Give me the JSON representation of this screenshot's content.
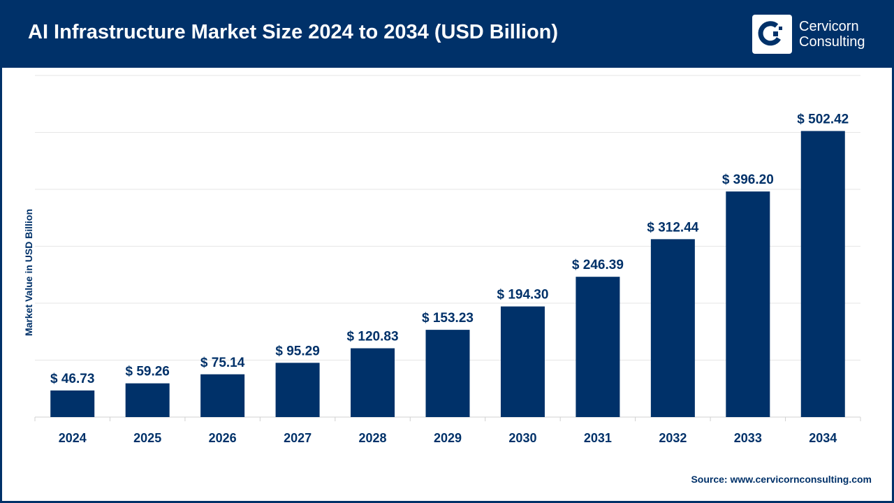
{
  "header": {
    "title": "AI Infrastructure Market Size 2024 to 2034 (USD Billion)",
    "brand": "Cervicorn Consulting",
    "brand_line1": "Cervicorn",
    "brand_line2": "Consulting"
  },
  "colors": {
    "header_bg": "#003169",
    "bar": "#003169",
    "grid": "#e6e6e6"
  },
  "chart_data": {
    "type": "bar",
    "title": "AI Infrastructure Market Size 2024 to 2034 (USD Billion)",
    "xlabel": "",
    "ylabel": "Market Value in USD Billion",
    "categories": [
      "2024",
      "2025",
      "2026",
      "2027",
      "2028",
      "2029",
      "2030",
      "2031",
      "2032",
      "2033",
      "2034"
    ],
    "values": [
      46.73,
      59.26,
      75.14,
      95.29,
      120.83,
      153.23,
      194.3,
      246.39,
      312.44,
      396.2,
      502.42
    ],
    "data_labels": [
      "$ 46.73",
      "$ 59.26",
      "$ 75.14",
      "$ 95.29",
      "$ 120.83",
      "$ 153.23",
      "$ 194.30",
      "$ 246.39",
      "$ 312.44",
      "$ 396.20",
      "$ 502.42"
    ],
    "ylim": [
      0,
      600
    ],
    "grid_step": 100,
    "grid": true,
    "y_tick_labels_shown": false
  },
  "footer": {
    "source": "Source: www.cervicornconsulting.com"
  }
}
